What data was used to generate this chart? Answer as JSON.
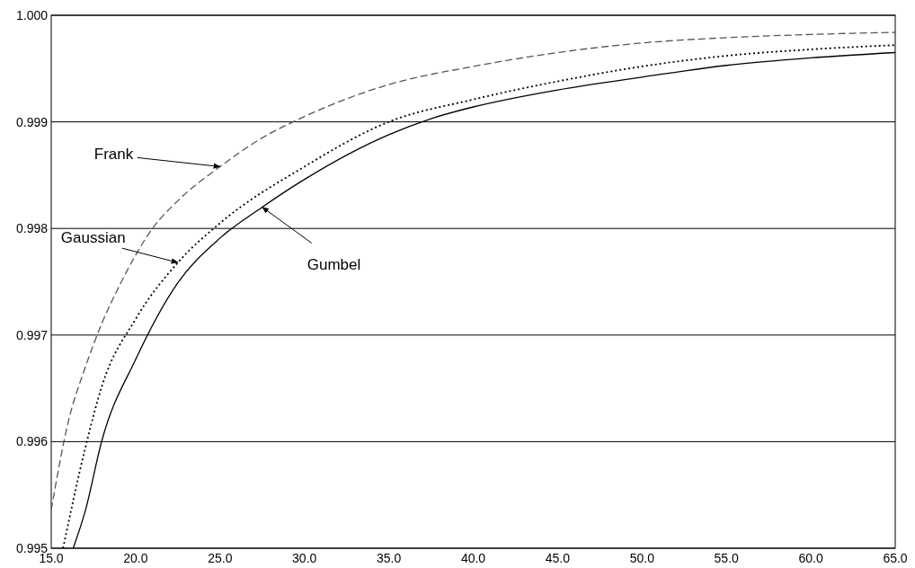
{
  "chart_data": {
    "type": "line",
    "xlim": [
      15,
      65
    ],
    "ylim": [
      0.995,
      1
    ],
    "xticks": [
      {
        "value": 15,
        "label": "15.0"
      },
      {
        "value": 20,
        "label": "20.0"
      },
      {
        "value": 25,
        "label": "25.0"
      },
      {
        "value": 30,
        "label": "30.0"
      },
      {
        "value": 35,
        "label": "35.0"
      },
      {
        "value": 40,
        "label": "40.0"
      },
      {
        "value": 45,
        "label": "45.0"
      },
      {
        "value": 50,
        "label": "50.0"
      },
      {
        "value": 55,
        "label": "55.0"
      },
      {
        "value": 60,
        "label": "60.0"
      },
      {
        "value": 65,
        "label": "65.0"
      }
    ],
    "yticks": [
      0.995,
      0.996,
      0.997,
      0.998,
      0.999,
      {
        "value": 1,
        "label": "1.000"
      }
    ],
    "grid": "y",
    "marker": "none",
    "series": [
      {
        "color": "#555555",
        "line_style": "dashed",
        "x": [
          15,
          16,
          17,
          18,
          19,
          20,
          21,
          22.5,
          25,
          27.5,
          30,
          35,
          40,
          45,
          50,
          55,
          60,
          65
        ],
        "values": [
          0.99536,
          0.99618,
          0.99669,
          0.99711,
          0.99745,
          0.99775,
          0.998,
          0.99826,
          0.99858,
          0.99885,
          0.99905,
          0.99935,
          0.99952,
          0.99965,
          0.99974,
          0.99979,
          0.99982,
          0.99984
        ]
      },
      {
        "color": "#000000",
        "line_style": "dotted",
        "x": [
          15.7,
          17,
          18,
          20,
          22.5,
          25,
          30,
          35,
          40,
          45,
          50,
          55,
          60,
          65
        ],
        "values": [
          0.995,
          0.99593,
          0.99652,
          0.99715,
          0.99768,
          0.99805,
          0.99858,
          0.999,
          0.99921,
          0.99938,
          0.99952,
          0.99962,
          0.99968,
          0.99972
        ]
      },
      {
        "color": "#000000",
        "line_style": "solid",
        "x": [
          16.3,
          17,
          18,
          20,
          22.5,
          25,
          27.5,
          30,
          35,
          37.5,
          40,
          45,
          50,
          55,
          60,
          65
        ],
        "values": [
          0.995,
          0.99534,
          0.99601,
          0.99677,
          0.99749,
          0.99791,
          0.9982,
          0.99846,
          0.99888,
          0.99903,
          0.99914,
          0.9993,
          0.99942,
          0.99953,
          0.9996,
          0.99965
        ]
      }
    ],
    "annotations": [
      {
        "text": "Frank",
        "x": 25,
        "y": 0.99858
      },
      {
        "text": "Gaussian",
        "x": 22.5,
        "y": 0.99768
      },
      {
        "text": "Gumbel",
        "x": 27.5,
        "y": 0.9982
      }
    ]
  }
}
